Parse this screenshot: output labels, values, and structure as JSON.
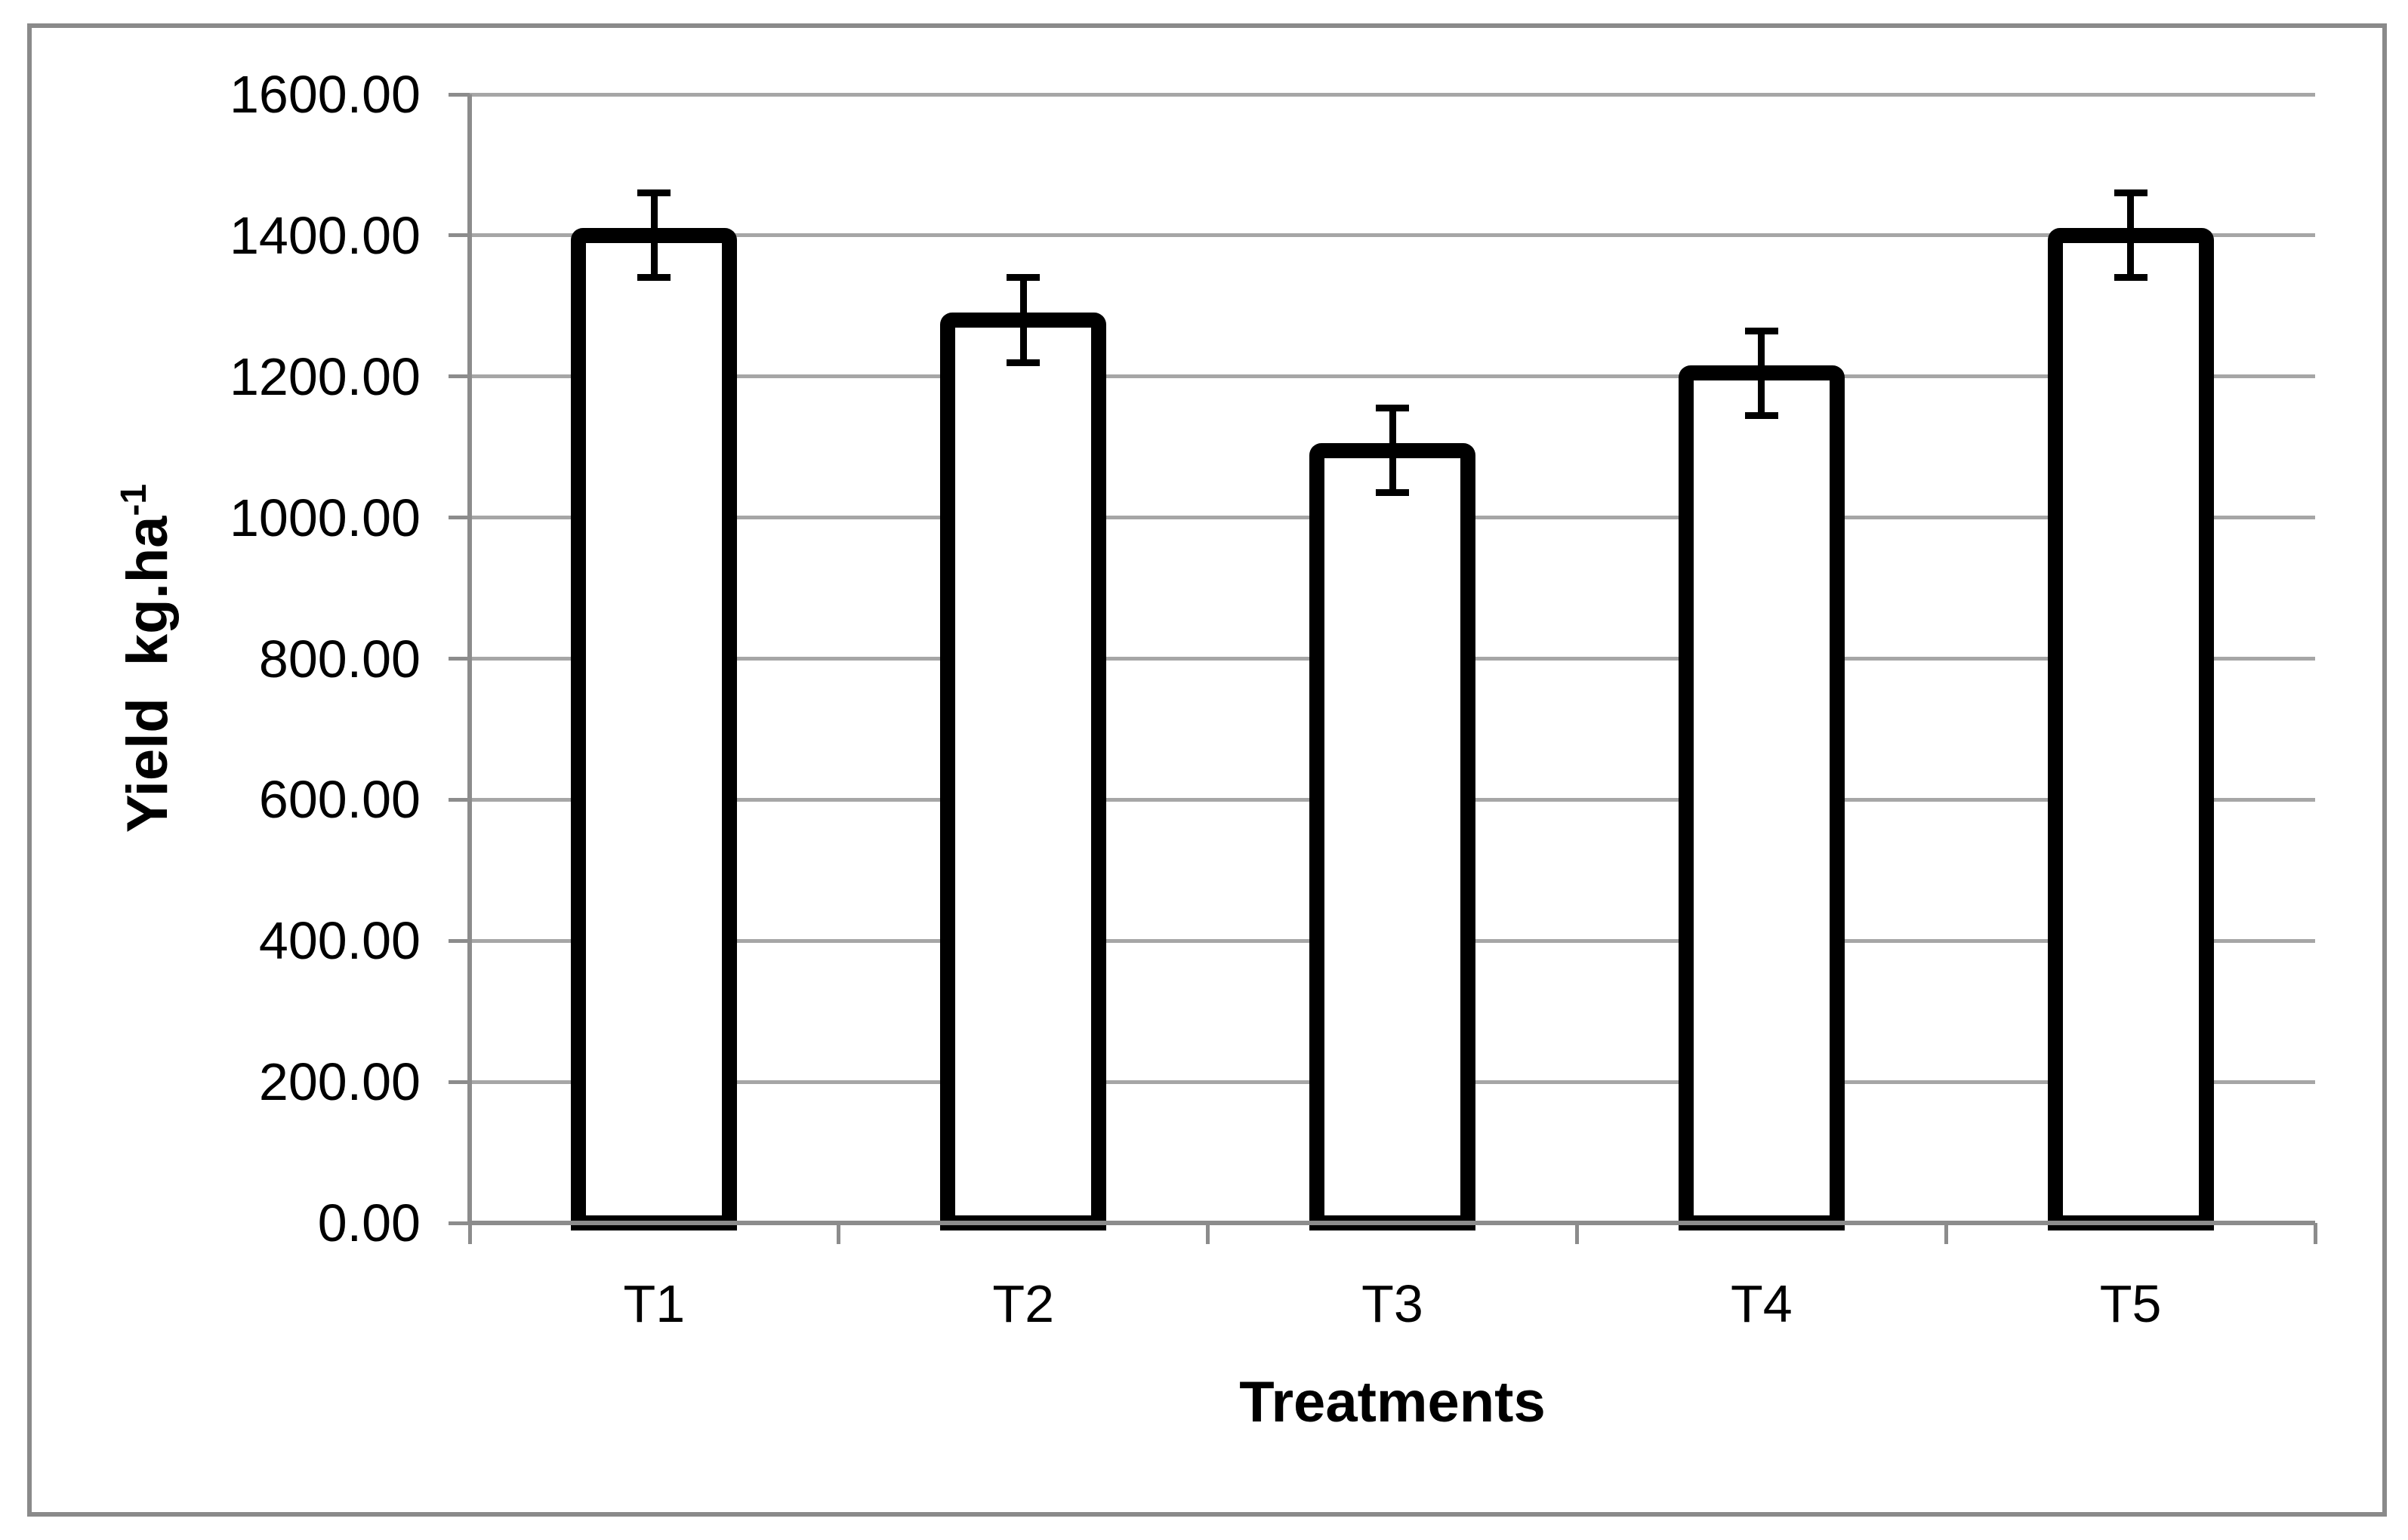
{
  "chart_data": {
    "type": "bar",
    "categories": [
      "T1",
      "T2",
      "T3",
      "T4",
      "T5"
    ],
    "values": [
      1400,
      1280,
      1095,
      1205,
      1400
    ],
    "error_bars": [
      60,
      60,
      60,
      60,
      60
    ],
    "xlabel": "Treatments",
    "ylabel_main": "Yield  kg.ha",
    "ylabel_superscript": "-1",
    "ylim": [
      0,
      1600
    ],
    "ytick_step": 200,
    "ytick_labels": [
      "1600.00",
      "1400.00",
      "1200.00",
      "1000.00",
      "800.00",
      "600.00",
      "400.00",
      "200.00",
      "0.00"
    ],
    "grid": true,
    "legend": "none",
    "bar_fill_color": "#ffffff",
    "bar_border_color": "#000000",
    "gridline_color": "#a6a6a6",
    "axis_color": "#8c8c8c",
    "frame_color": "#8a8a8a",
    "text_color": "#000000"
  }
}
